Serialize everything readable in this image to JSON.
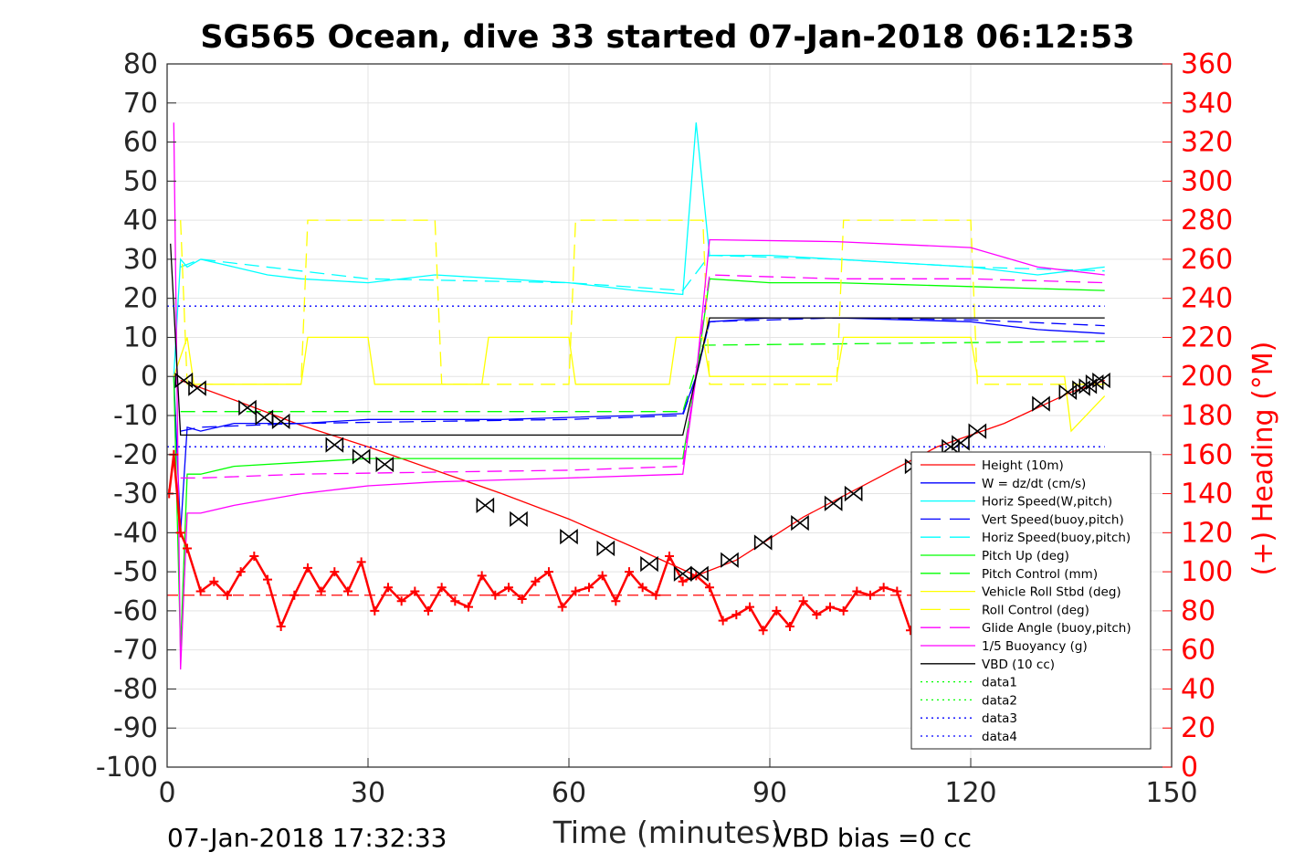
{
  "chart_data": {
    "type": "line",
    "title": "SG565 Ocean, dive 33 started 07-Jan-2018 06:12:53",
    "xlabel": "Time (minutes)",
    "ylabel": "",
    "y2label": "(+) Heading (°M)",
    "xlim": [
      0,
      150
    ],
    "ylim": [
      -100,
      80
    ],
    "y2lim": [
      0,
      360
    ],
    "xticks": [
      "0",
      "30",
      "60",
      "90",
      "120",
      "150"
    ],
    "yticks": [
      "80",
      "70",
      "60",
      "50",
      "40",
      "30",
      "20",
      "10",
      "0",
      "-10",
      "-20",
      "-30",
      "-40",
      "-50",
      "-60",
      "-70",
      "-80",
      "-90",
      "-100"
    ],
    "y2ticks": [
      "360",
      "340",
      "320",
      "300",
      "280",
      "260",
      "240",
      "220",
      "200",
      "180",
      "160",
      "140",
      "120",
      "100",
      "80",
      "60",
      "40",
      "20",
      "0"
    ],
    "grid": true,
    "legend_position": "bottom-right",
    "footer_left": "07-Jan-2018 17:32:33",
    "footer_right": "VBD bias =0 cc",
    "colors": {
      "height": "#ff0000",
      "w": "#0000ff",
      "horiz_w": "#00ffff",
      "pitch": "#00ff00",
      "roll": "#ffff00",
      "glide": "#ff00ff",
      "vbd": "#000000",
      "heading": "#ff0000"
    },
    "series": [
      {
        "name": "Height (10m)",
        "style": "solid",
        "color": "#ff0000",
        "x": [
          2,
          10,
          20,
          30,
          40,
          50,
          60,
          70,
          79,
          85,
          95,
          105,
          115,
          125,
          135,
          140
        ],
        "y": [
          -1,
          -6,
          -12.5,
          -18,
          -24,
          -30,
          -36.5,
          -44,
          -51,
          -47,
          -36,
          -27,
          -18,
          -12,
          -4,
          -1
        ]
      },
      {
        "name": "W = dz/dt (cm/s)",
        "style": "solid",
        "color": "#0000ff",
        "x": [
          1,
          2,
          3,
          5,
          10,
          20,
          30,
          40,
          50,
          60,
          70,
          77,
          79,
          81,
          90,
          100,
          110,
          120,
          130,
          140
        ],
        "y": [
          0,
          -40,
          -13,
          -14,
          -12,
          -12,
          -11,
          -11,
          -11,
          -10.5,
          -10,
          -9.5,
          0,
          14,
          15,
          15,
          14.5,
          14,
          12,
          11
        ]
      },
      {
        "name": "Horiz Speed(W,pitch)",
        "style": "solid",
        "color": "#00ffff",
        "x": [
          1,
          2,
          3,
          5,
          10,
          15,
          20,
          30,
          40,
          50,
          60,
          70,
          77,
          79,
          81,
          90,
          100,
          110,
          120,
          130,
          140
        ],
        "y": [
          0,
          30,
          28,
          30,
          28,
          26,
          25,
          24,
          26,
          25,
          24,
          22,
          21,
          65,
          31,
          31,
          30,
          29,
          28,
          26,
          28
        ]
      },
      {
        "name": "Vert Speed(buoy,pitch)",
        "style": "dash",
        "color": "#0000ff",
        "x": [
          2,
          5,
          20,
          40,
          60,
          77,
          79,
          81,
          100,
          120,
          140
        ],
        "y": [
          -14,
          -13,
          -12,
          -11.5,
          -11,
          -10,
          0,
          14,
          15,
          14.5,
          13
        ]
      },
      {
        "name": "Horiz Speed(buoy,pitch)",
        "style": "dash",
        "color": "#00ffff",
        "x": [
          2,
          5,
          30,
          60,
          77,
          81,
          100,
          120,
          140
        ],
        "y": [
          28,
          30,
          25,
          24,
          22,
          31,
          30,
          28,
          27
        ]
      },
      {
        "name": "Pitch Up (deg)",
        "style": "solid",
        "color": "#00ff00",
        "x": [
          1,
          2,
          3,
          5,
          10,
          20,
          30,
          40,
          50,
          60,
          70,
          77,
          79,
          81,
          90,
          100,
          110,
          120,
          130,
          140
        ],
        "y": [
          0,
          -70,
          -25,
          -25,
          -23,
          -22,
          -21,
          -21,
          -21,
          -21,
          -21,
          -21,
          0,
          25,
          24,
          24,
          23.5,
          23,
          22.5,
          22
        ]
      },
      {
        "name": "Pitch Control (mm)",
        "style": "dash",
        "color": "#00ff00",
        "x": [
          2,
          77,
          80,
          140
        ],
        "y": [
          -9,
          -9,
          8,
          9
        ]
      },
      {
        "name": "Vehicle Roll Stbd (deg)",
        "style": "solid",
        "color": "#ffff00",
        "x": [
          1,
          3,
          4,
          6,
          20,
          21,
          30,
          31,
          47,
          48,
          60,
          61,
          75,
          76,
          80,
          81,
          100,
          101,
          120,
          121,
          134,
          135,
          140
        ],
        "y": [
          0,
          10,
          -2,
          -2,
          -2,
          10,
          10,
          -2,
          -2,
          10,
          10,
          -2,
          -2,
          10,
          10,
          0,
          0,
          10,
          10,
          0,
          0,
          -14,
          -5
        ]
      },
      {
        "name": "Roll Control (deg)",
        "style": "dash",
        "color": "#ffff00",
        "x": [
          2,
          3,
          20,
          21,
          40,
          41,
          60,
          61,
          80,
          81,
          100,
          101,
          120,
          121,
          140
        ],
        "y": [
          40,
          -2,
          -2,
          40,
          40,
          -2,
          -2,
          40,
          40,
          -2,
          -2,
          40,
          40,
          -2,
          -2
        ]
      },
      {
        "name": "Glide Angle (buoy,pitch)",
        "style": "dash",
        "color": "#ff00ff",
        "x": [
          2,
          5,
          20,
          40,
          60,
          77,
          81,
          100,
          120,
          140
        ],
        "y": [
          -26,
          -26,
          -25,
          -24.5,
          -24,
          -23,
          26,
          25,
          25,
          24
        ]
      },
      {
        "name": "1/5 Buoyancy (g)",
        "style": "solid",
        "color": "#ff00ff",
        "x": [
          1,
          2,
          3,
          5,
          10,
          20,
          30,
          40,
          60,
          77,
          79,
          81,
          100,
          120,
          130,
          140
        ],
        "y": [
          65,
          -75,
          -35,
          -35,
          -33,
          -30,
          -28,
          -27,
          -26,
          -25,
          0,
          35,
          34.5,
          33,
          28,
          26
        ]
      },
      {
        "name": "VBD (10 cc)",
        "style": "solid",
        "color": "#000000",
        "x": [
          0.5,
          2,
          3,
          20,
          40,
          60,
          77,
          79,
          81,
          100,
          120,
          140
        ],
        "y": [
          34,
          -15,
          -15,
          -15,
          -15,
          -15,
          -15,
          0,
          15,
          15,
          15,
          15
        ]
      },
      {
        "name": "data1",
        "style": "dot",
        "color": "#00ff00",
        "x": [],
        "y": []
      },
      {
        "name": "data2",
        "style": "dot",
        "color": "#00ff00",
        "x": [],
        "y": []
      },
      {
        "name": "data3",
        "style": "dot",
        "color": "#0000ff",
        "x": [
          0,
          140
        ],
        "y": [
          18,
          18
        ]
      },
      {
        "name": "data4",
        "style": "dot",
        "color": "#0000ff",
        "x": [
          0,
          140
        ],
        "y": [
          -18,
          -18
        ]
      }
    ],
    "heading": {
      "axis": "right",
      "marker": "+",
      "color": "#ff0000",
      "mean": 88,
      "x": [
        0.3,
        1,
        2,
        3,
        5,
        7,
        9,
        11,
        13,
        15,
        17,
        19,
        21,
        23,
        25,
        27,
        29,
        31,
        33,
        35,
        37,
        39,
        41,
        43,
        45,
        47,
        49,
        51,
        53,
        55,
        57,
        59,
        61,
        63,
        65,
        67,
        69,
        71,
        73,
        75,
        77,
        79,
        81,
        83,
        85,
        87,
        89,
        91,
        93,
        95,
        97,
        99,
        101,
        103,
        105,
        107,
        109,
        111
      ],
      "y": [
        140,
        160,
        120,
        112,
        90,
        95,
        88,
        100,
        108,
        96,
        72,
        88,
        102,
        90,
        100,
        90,
        105,
        80,
        92,
        85,
        90,
        80,
        92,
        85,
        82,
        98,
        88,
        92,
        86,
        95,
        100,
        82,
        90,
        92,
        98,
        85,
        100,
        92,
        88,
        108,
        95,
        98,
        92,
        75,
        78,
        82,
        70,
        80,
        72,
        85,
        78,
        82,
        80,
        90,
        88,
        92,
        90,
        70
      ]
    },
    "height_markers": {
      "x": [
        2.5,
        4.5,
        12,
        14.5,
        17,
        25,
        29,
        32.5,
        47.5,
        52.5,
        60,
        65.5,
        72,
        77,
        79.5,
        84,
        89,
        94.5,
        99.5,
        102.5,
        111.5,
        117,
        118.5,
        121,
        130.5,
        134.5,
        136.5,
        137.5,
        138.5,
        139.5
      ],
      "y": [
        -1,
        -3,
        -8,
        -10.5,
        -11.5,
        -17.5,
        -20.5,
        -22.5,
        -33,
        -36.5,
        -41,
        -44,
        -48,
        -50.5,
        -50.5,
        -47,
        -42.5,
        -37.5,
        -32.5,
        -30,
        -23,
        -18,
        -17,
        -14,
        -7,
        -4,
        -3,
        -2.5,
        -1.5,
        -1
      ]
    }
  }
}
